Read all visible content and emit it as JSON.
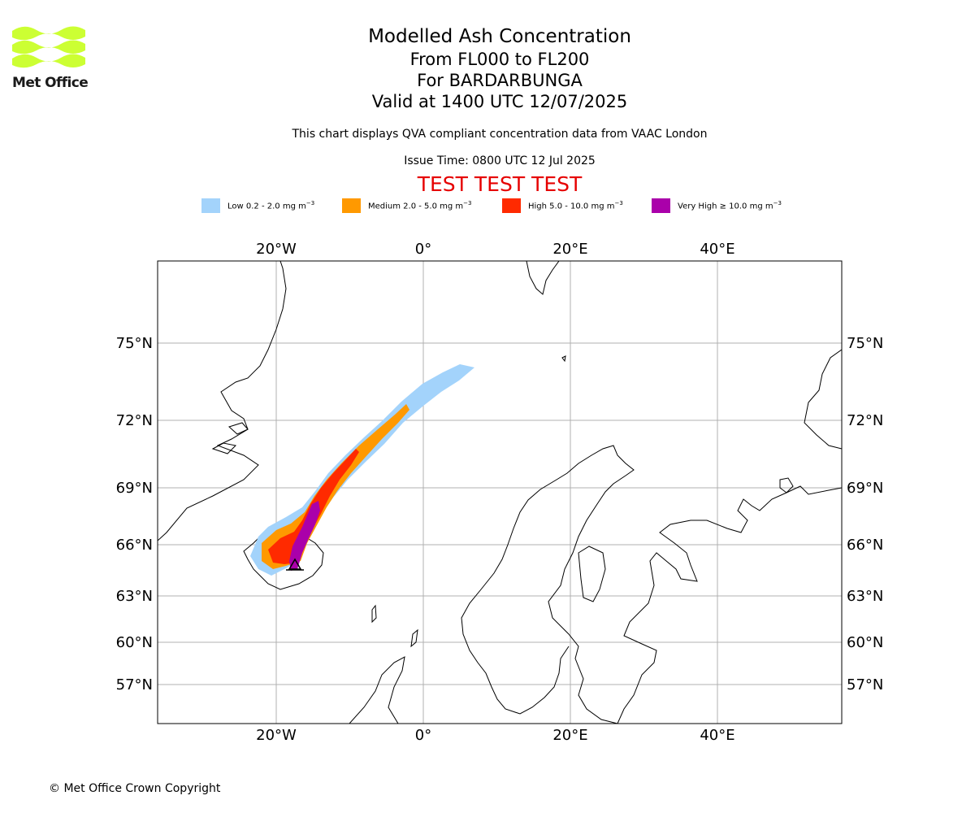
{
  "logo": {
    "text": "Met Office",
    "color": "#ccff33"
  },
  "title": {
    "line1": "Modelled Ash Concentration",
    "line2": "From FL000 to FL200",
    "line3": "For BARDARBUNGA",
    "line4": "Valid at 1400 UTC 12/07/2025"
  },
  "subtitle": "This chart displays QVA compliant concentration data from VAAC London",
  "issue_time": "Issue Time: 0800 UTC 12 Jul 2025",
  "test_banner": "TEST TEST TEST",
  "legend": [
    {
      "label": "Low 0.2 - 2.0 mg m",
      "sup": "−3",
      "color": "#a3d3fb"
    },
    {
      "label": "Medium 2.0 - 5.0 mg m",
      "sup": "−3",
      "color": "#ff9900"
    },
    {
      "label": "High 5.0 - 10.0 mg m",
      "sup": "−3",
      "color": "#ff2a00"
    },
    {
      "label": "Very High ≥ 10.0 mg m",
      "sup": "−3",
      "color": "#aa00aa"
    }
  ],
  "axes": {
    "lon_labels": [
      "20°W",
      "0°",
      "20°E",
      "40°E"
    ],
    "lat_labels": [
      "75°N",
      "72°N",
      "69°N",
      "66°N",
      "63°N",
      "60°N",
      "57°N"
    ],
    "gridlines": true
  },
  "volcano_marker": "triangle-icon",
  "copyright": "© Met Office Crown Copyright"
}
